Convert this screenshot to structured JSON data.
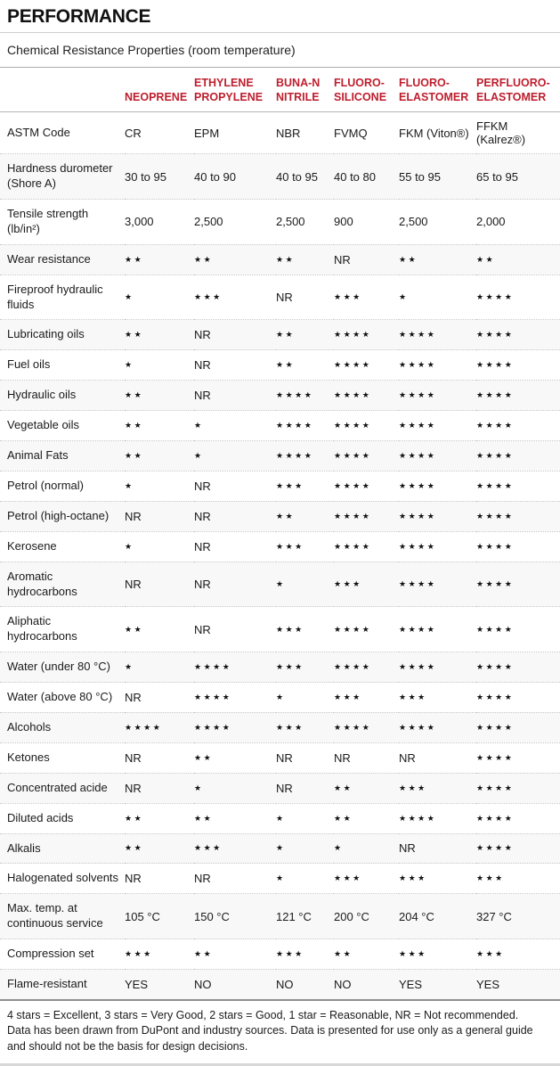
{
  "header": {
    "title": "PERFORMANCE",
    "subtitle": "Chemical Resistance Properties (room temperature)"
  },
  "colors": {
    "accent_red": "#be1e2d",
    "stripe_gray": "#f8f8f8"
  },
  "table": {
    "columns": [
      "NEOPRENE",
      "ETHYLENE\nPROPYLENE",
      "BUNA-N\nNITRILE",
      "FLUORO-\nSILICONE",
      "FLUORO-\nELASTOMER",
      "PERFLUORO-\nELASTOMER"
    ],
    "rows": [
      {
        "label": "ASTM Code",
        "values": [
          "CR",
          "EPM",
          "NBR",
          "FVMQ",
          "FKM (Viton®)",
          "FFKM (Kalrez®)"
        ]
      },
      {
        "label": "Hardness durometer (Shore A)",
        "values": [
          "30 to 95",
          "40 to 90",
          "40 to 95",
          "40 to 80",
          "55 to 95",
          "65 to 95"
        ]
      },
      {
        "label": "Tensile strength (lb/in²)",
        "values": [
          "3,000",
          "2,500",
          "2,500",
          "900",
          "2,500",
          "2,000"
        ]
      },
      {
        "label": "Wear resistance",
        "values": [
          "★★",
          "★★",
          "★★",
          "NR",
          "★★",
          "★★"
        ]
      },
      {
        "label": "Fireproof hydraulic fluids",
        "values": [
          "★",
          "★★★",
          "NR",
          "★★★",
          "★",
          "★★★★"
        ]
      },
      {
        "label": "Lubricating oils",
        "values": [
          "★★",
          "NR",
          "★★",
          "★★★★",
          "★★★★",
          "★★★★"
        ]
      },
      {
        "label": "Fuel oils",
        "values": [
          "★",
          "NR",
          "★★",
          "★★★★",
          "★★★★",
          "★★★★"
        ]
      },
      {
        "label": "Hydraulic oils",
        "values": [
          "★★",
          "NR",
          "★★★★",
          "★★★★",
          "★★★★",
          "★★★★"
        ]
      },
      {
        "label": "Vegetable oils",
        "values": [
          "★★",
          "★",
          "★★★★",
          "★★★★",
          "★★★★",
          "★★★★"
        ]
      },
      {
        "label": "Animal Fats",
        "values": [
          "★★",
          "★",
          "★★★★",
          "★★★★",
          "★★★★",
          "★★★★"
        ]
      },
      {
        "label": "Petrol (normal)",
        "values": [
          "★",
          "NR",
          "★★★",
          "★★★★",
          "★★★★",
          "★★★★"
        ]
      },
      {
        "label": "Petrol (high-octane)",
        "values": [
          "NR",
          "NR",
          "★★",
          "★★★★",
          "★★★★",
          "★★★★"
        ]
      },
      {
        "label": "Kerosene",
        "values": [
          "★",
          "NR",
          "★★★",
          "★★★★",
          "★★★★",
          "★★★★"
        ]
      },
      {
        "label": "Aromatic hydrocarbons",
        "values": [
          "NR",
          "NR",
          "★",
          "★★★",
          "★★★★",
          "★★★★"
        ]
      },
      {
        "label": "Aliphatic hydrocarbons",
        "values": [
          "★★",
          "NR",
          "★★★",
          "★★★★",
          "★★★★",
          "★★★★"
        ]
      },
      {
        "label": "Water (under 80 °C)",
        "values": [
          "★",
          "★★★★",
          "★★★",
          "★★★★",
          "★★★★",
          "★★★★"
        ]
      },
      {
        "label": "Water (above 80 °C)",
        "values": [
          "NR",
          "★★★★",
          "★",
          "★★★",
          "★★★",
          "★★★★"
        ]
      },
      {
        "label": "Alcohols",
        "values": [
          "★★★★",
          "★★★★",
          "★★★",
          "★★★★",
          "★★★★",
          "★★★★"
        ]
      },
      {
        "label": "Ketones",
        "values": [
          "NR",
          "★★",
          "NR",
          "NR",
          "NR",
          "★★★★"
        ]
      },
      {
        "label": "Concentrated acide",
        "values": [
          "NR",
          "★",
          "NR",
          "★★",
          "★★★",
          "★★★★"
        ]
      },
      {
        "label": "Diluted acids",
        "values": [
          "★★",
          "★★",
          "★",
          "★★",
          "★★★★",
          "★★★★"
        ]
      },
      {
        "label": "Alkalis",
        "values": [
          "★★",
          "★★★",
          "★",
          "★",
          "NR",
          "★★★★"
        ]
      },
      {
        "label": "Halogenated solvents",
        "values": [
          "NR",
          "NR",
          "★",
          "★★★",
          "★★★",
          "★★★"
        ]
      },
      {
        "label": "Max. temp. at continuous service",
        "values": [
          "105 °C",
          "150 °C",
          "121 °C",
          "200 °C",
          "204 °C",
          "327 °C"
        ]
      },
      {
        "label": "Compression set",
        "values": [
          "★★★",
          "★★",
          "★★★",
          "★★",
          "★★★",
          "★★★"
        ]
      },
      {
        "label": "Flame-resistant",
        "values": [
          "YES",
          "NO",
          "NO",
          "NO",
          "YES",
          "YES"
        ]
      }
    ]
  },
  "footer": {
    "legend": "4 stars = Excellent, 3 stars = Very Good, 2 stars = Good, 1 star = Reasonable, NR = Not recommended.",
    "disclaimer": "Data has been drawn from DuPont and industry sources. Data is presented for use only as a general guide and should not be the basis for design decisions."
  }
}
